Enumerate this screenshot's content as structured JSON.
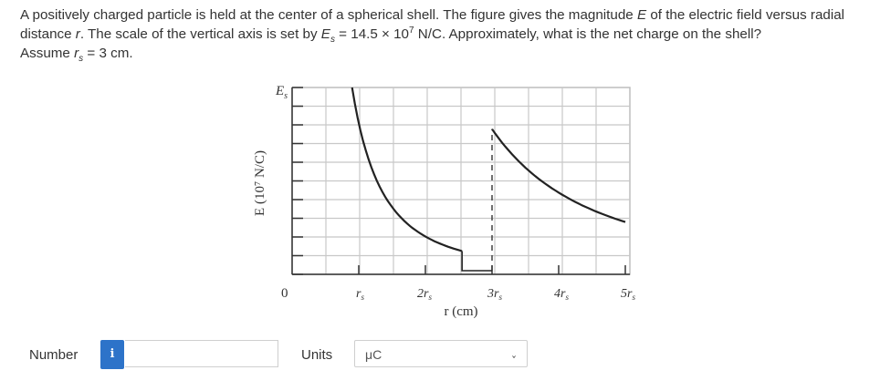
{
  "question": {
    "part1": "A positively charged particle is held at the center of a spherical shell. The figure gives the magnitude ",
    "var_E": "E",
    "part2": " of the electric field versus radial distance ",
    "var_r": "r",
    "part3": ". The scale of the vertical axis is set by ",
    "var_Es": "E",
    "sub_s": "s",
    "part4": " = 14.5 × 10",
    "exp7": "7",
    "part5": " N/C. Approximately, what is the net charge on the shell?",
    "part6": "Assume ",
    "var_rs": "r",
    "sub_s2": "s",
    "part7": " = 3 cm."
  },
  "figure": {
    "y_top_label": "E",
    "y_top_sub": "s",
    "y_axis_label": "E (10⁷ N/C)",
    "zero_label": "0",
    "tick_rs": "r",
    "tick_rs_sub": "s",
    "tick_2": "2r",
    "tick_3": "3r",
    "tick_4": "4r",
    "tick_5": "5r",
    "tick_sub": "s",
    "x_axis_label": "r (cm)"
  },
  "chart_data": {
    "type": "line",
    "xlabel": "r (cm)",
    "ylabel": "E (10⁷ N/C)",
    "xticks": [
      "0",
      "rs",
      "2rs",
      "3rs",
      "4rs",
      "5rs"
    ],
    "yticks_top": "Es",
    "series": [
      {
        "x_rs": [
          0.75,
          1.0,
          1.25,
          1.5,
          1.75,
          2.0,
          2.5
        ],
        "E_over_Es": [
          2.0,
          1.125,
          0.72,
          0.5,
          0.367,
          0.281,
          0.18
        ]
      },
      {
        "x_rs": [
          3.0,
          3.5,
          4.0,
          4.5,
          5.0
        ],
        "E_over_Es": [
          0.778,
          0.571,
          0.4375,
          0.346,
          0.28
        ]
      }
    ],
    "grid": true,
    "dashed_vertical_at_x_rs": 3.0
  },
  "answer": {
    "number_label": "Number",
    "info_symbol": "i",
    "number_value": "",
    "units_label": "Units",
    "units_value": "μC",
    "units_chevron": "›"
  }
}
